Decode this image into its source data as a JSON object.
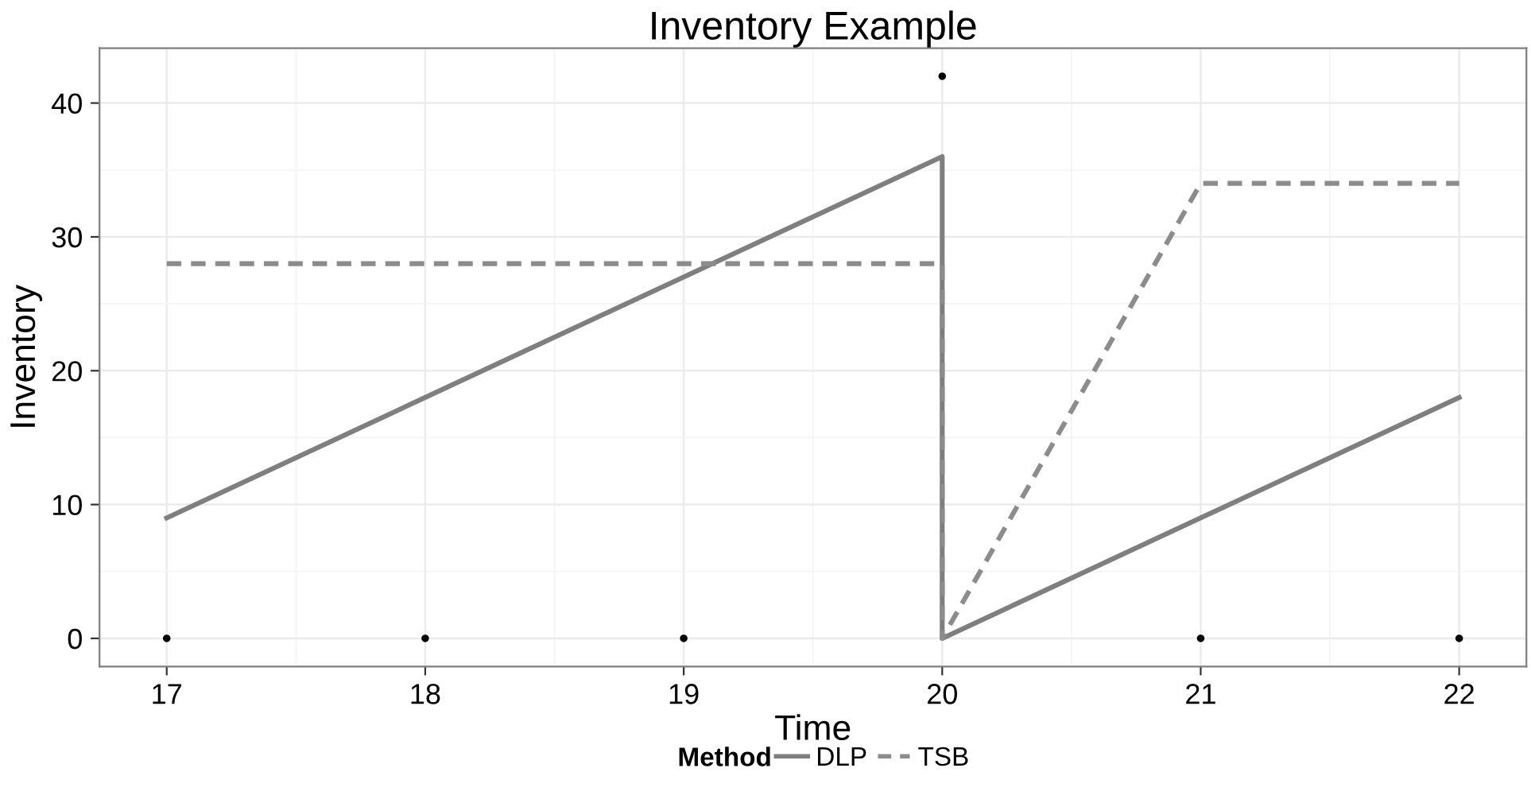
{
  "chart_data": {
    "type": "line",
    "title": "Inventory Example",
    "xlabel": "Time",
    "ylabel": "Inventory",
    "legend_title": "Method",
    "xlim": [
      16.74,
      22.26
    ],
    "ylim": [
      -2.1,
      44.1
    ],
    "xticks": [
      17,
      18,
      19,
      20,
      21,
      22
    ],
    "yticks": [
      0,
      10,
      20,
      30,
      40
    ],
    "grid": true,
    "legend": "bottom",
    "series": [
      {
        "name": "DLP",
        "color": "#7f7f7f",
        "line_style": "solid",
        "x": [
          17,
          20,
          20,
          22
        ],
        "values": [
          9,
          36,
          0,
          18
        ]
      },
      {
        "name": "TSB",
        "color": "#8c8c8c",
        "line_style": "dashed",
        "x": [
          17,
          20,
          20,
          21,
          22
        ],
        "values": [
          28,
          28,
          0,
          34,
          34
        ]
      },
      {
        "type": "scatter",
        "color": "#000000",
        "marker": "circle",
        "x": [
          17,
          18,
          19,
          20,
          21,
          22
        ],
        "values": [
          0,
          0,
          0,
          42,
          0,
          0
        ]
      }
    ]
  }
}
